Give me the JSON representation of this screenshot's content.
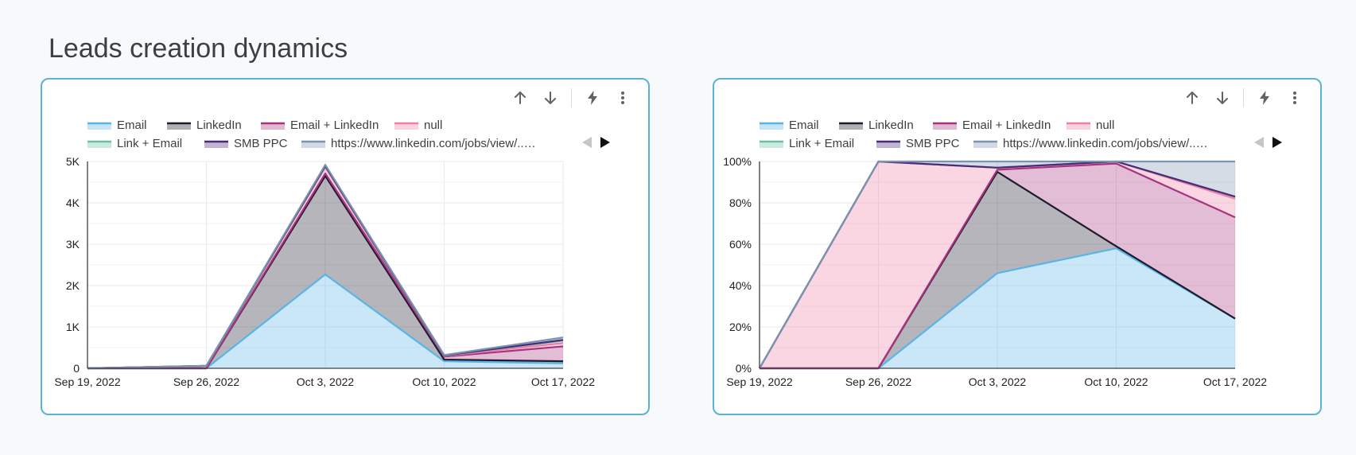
{
  "page": {
    "title": "Leads creation dynamics"
  },
  "toolbar": {
    "icons": [
      "arrow-up-icon",
      "arrow-down-icon",
      "lightning-icon",
      "more-vert-icon"
    ]
  },
  "legend": {
    "prev_icon": "chevron-left-icon",
    "next_icon": "chevron-right-icon"
  },
  "series_colors": {
    "Email": "#5ab4e5",
    "LinkedIn": "#1f1a2e",
    "Email + LinkedIn": "#a8337e",
    "null": "#ee7fa6",
    "Link + Email": "#6cbfa3",
    "SMB PPC": "#4b2a7a",
    "https://www.linkedin.com/jobs/view/...": "#7b92b0"
  },
  "chart_data": [
    {
      "type": "area",
      "stacked": true,
      "x": [
        "Sep 19, 2022",
        "Sep 26, 2022",
        "Oct 3, 2022",
        "Oct 10, 2022",
        "Oct 17, 2022"
      ],
      "ylim": [
        0,
        5000
      ],
      "yticks": [
        "0",
        "1K",
        "2K",
        "3K",
        "4K",
        "5K"
      ],
      "grid": true,
      "legend_position": "top",
      "series": [
        {
          "name": "Email",
          "values": [
            0,
            0,
            2270,
            170,
            120
          ]
        },
        {
          "name": "LinkedIn",
          "values": [
            0,
            0,
            2380,
            40,
            50
          ]
        },
        {
          "name": "Email + LinkedIn",
          "values": [
            0,
            0,
            60,
            70,
            360
          ]
        },
        {
          "name": "null",
          "values": [
            0,
            60,
            150,
            20,
            80
          ]
        },
        {
          "name": "Link + Email",
          "values": [
            0,
            0,
            20,
            5,
            60
          ]
        },
        {
          "name": "SMB PPC",
          "values": [
            0,
            0,
            10,
            5,
            15
          ]
        },
        {
          "name": "https://www.linkedin.com/jobs/view/...",
          "values": [
            0,
            0,
            30,
            10,
            60
          ]
        }
      ]
    },
    {
      "type": "area",
      "stacked": true,
      "normalized": true,
      "x": [
        "Sep 19, 2022",
        "Sep 26, 2022",
        "Oct 3, 2022",
        "Oct 10, 2022",
        "Oct 17, 2022"
      ],
      "ylim": [
        0,
        100
      ],
      "yticks": [
        "0%",
        "20%",
        "40%",
        "60%",
        "80%",
        "100%"
      ],
      "grid": true,
      "legend_position": "top",
      "series": [
        {
          "name": "Email",
          "values": [
            0,
            0,
            46,
            58,
            24
          ]
        },
        {
          "name": "LinkedIn",
          "values": [
            0,
            0,
            49,
            1,
            0
          ]
        },
        {
          "name": "Email + LinkedIn",
          "values": [
            0,
            0,
            1,
            40,
            49
          ]
        },
        {
          "name": "null",
          "values": [
            0,
            100,
            1,
            1,
            9
          ]
        },
        {
          "name": "Link + Email",
          "values": [
            0,
            0,
            0,
            0,
            1
          ]
        },
        {
          "name": "SMB PPC",
          "values": [
            0,
            0,
            0,
            0,
            0
          ]
        },
        {
          "name": "https://www.linkedin.com/jobs/view/...",
          "values": [
            0,
            0,
            3,
            0,
            17
          ]
        }
      ]
    }
  ]
}
